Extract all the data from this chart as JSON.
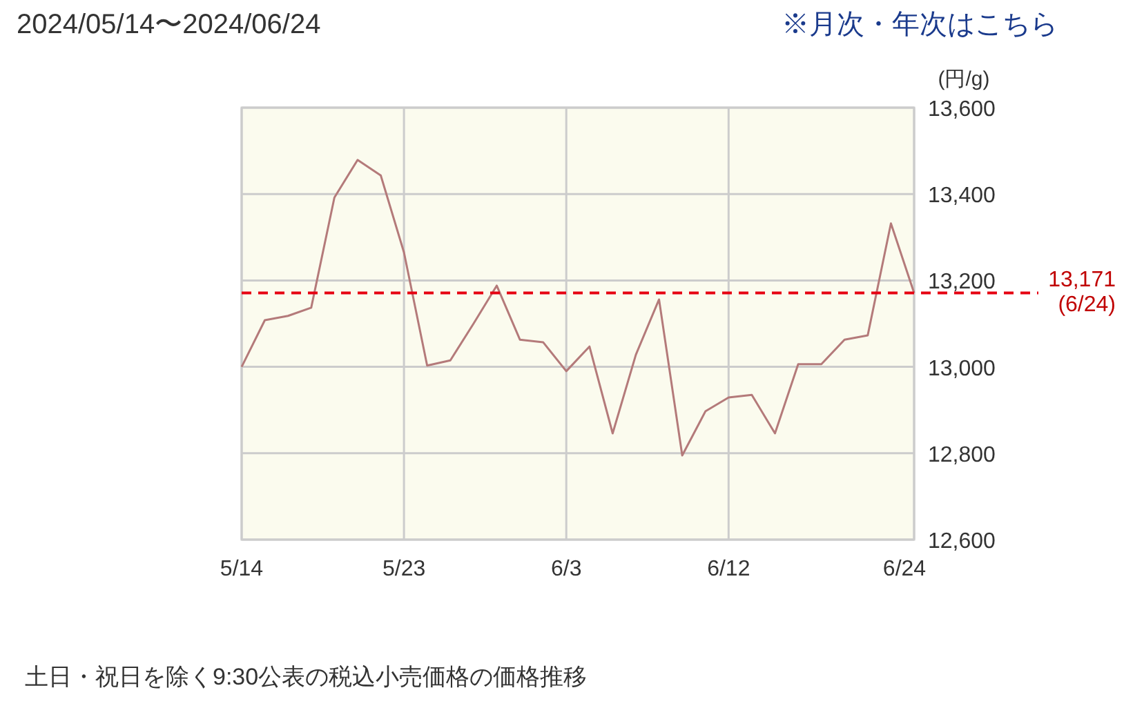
{
  "chart_data": {
    "type": "line",
    "title": "2024/05/14〜2024/06/24",
    "ylabel": "(円/g)",
    "annotations": [
      "※月次・年次はこちら",
      "土日・祝日を除く9:30公表の税込小売価格の価格推移"
    ],
    "categories": [
      "5/14",
      null,
      null,
      null,
      null,
      null,
      null,
      "5/23",
      null,
      null,
      null,
      null,
      null,
      null,
      "6/3",
      null,
      null,
      null,
      null,
      null,
      null,
      "6/12",
      null,
      null,
      null,
      null,
      null,
      null,
      null,
      "6/24"
    ],
    "series": [
      {
        "color": "#b47a7a",
        "values": [
          13000,
          13108,
          13118,
          13137,
          13392,
          13479,
          13443,
          13265,
          13003,
          13015,
          13100,
          13188,
          13063,
          13057,
          12990,
          13047,
          12846,
          13028,
          13156,
          12795,
          12897,
          12929,
          12935,
          12846,
          13006,
          13006,
          13063,
          13073,
          13332,
          13171
        ]
      }
    ],
    "ylim": [
      12600,
      13600
    ],
    "yticks": [
      {
        "value": 12600,
        "label": "12,600"
      },
      {
        "value": 12800,
        "label": "12,800"
      },
      {
        "value": 13000,
        "label": "13,000"
      },
      {
        "value": 13200,
        "label": "13,200"
      },
      {
        "value": 13400,
        "label": "13,400"
      },
      {
        "value": 13600,
        "label": "13,600"
      }
    ],
    "grid": true,
    "marker": "none",
    "line_style": "solid",
    "ref_lines": [
      {
        "axis": "y",
        "value": 13171,
        "label": "13,171\n(6/24)",
        "color": "#e60012",
        "line_style": "dashed"
      }
    ]
  }
}
